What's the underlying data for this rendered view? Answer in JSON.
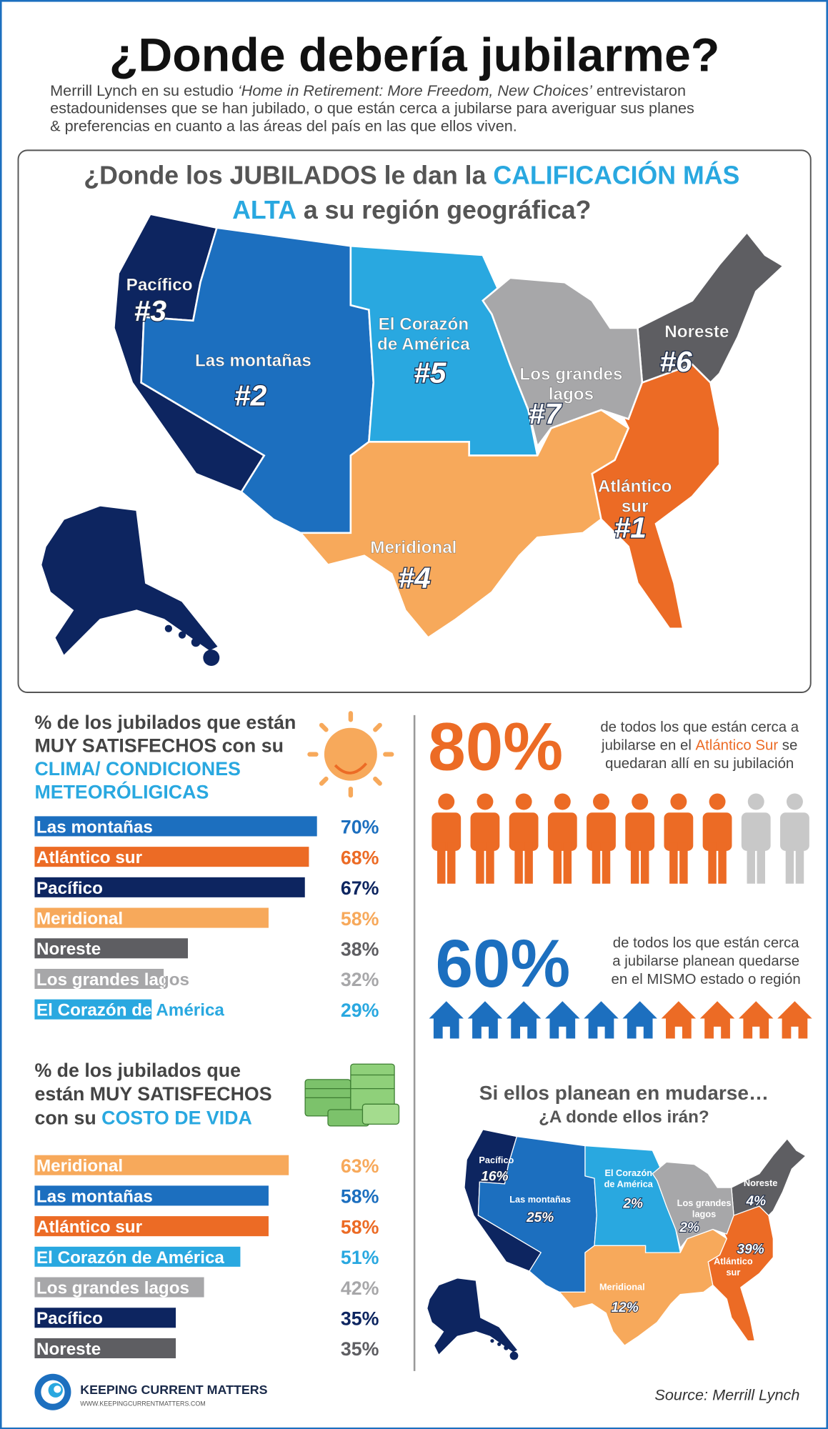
{
  "header": {
    "title": "¿Donde debería jubilarme?",
    "intro": [
      [
        {
          "text": "Merrill Lynch en su estudio "
        },
        {
          "text": "‘Home in Retirement: More Freedom, New Choices’",
          "italic": true
        },
        {
          "text": " entrevistaron"
        }
      ],
      [
        {
          "text": "estadounidenses que se han jubilado, o que están cerca a jubilarse para averiguar sus planes"
        }
      ],
      [
        {
          "text": "& preferencias en cuanto a las áreas del país en las que ellos viven."
        }
      ]
    ]
  },
  "map": {
    "title": [
      [
        {
          "text": "¿Donde los JUBILADOS le dan la "
        },
        {
          "text": "CALIFICACIÓN MÁS",
          "hl": true
        }
      ],
      [
        {
          "text": "ALTA",
          "hl": true
        },
        {
          "text": " a su región geográfica?"
        }
      ]
    ],
    "regions": [
      {
        "name": [
          "Pacífico"
        ],
        "rank": "#3",
        "color": "#0d2560"
      },
      {
        "name": [
          "Las montañas"
        ],
        "rank": "#2",
        "color": "#1c6fbf"
      },
      {
        "name": [
          "El Corazón",
          "de América"
        ],
        "rank": "#5",
        "color": "#29a8e0"
      },
      {
        "name": [
          "Meridional"
        ],
        "rank": "#4",
        "color": "#f7a95b"
      },
      {
        "name": [
          "Atlántico",
          "sur"
        ],
        "rank": "#1",
        "color": "#ec6b25"
      },
      {
        "name": [
          "Noreste"
        ],
        "rank": "#6",
        "color": "#5e5e62"
      },
      {
        "name": [
          "Los grandes",
          "lagos"
        ],
        "rank": "#7",
        "color": "#a7a7a9"
      }
    ]
  },
  "weather": {
    "title": [
      [
        {
          "text": "% de los jubilados que están"
        }
      ],
      [
        {
          "text": "MUY SATISFECHOS con su"
        }
      ],
      [
        {
          "text": "CLIMA/ CONDICIONES",
          "hl": true
        }
      ],
      [
        {
          "text": "METEORÓLIGICAS",
          "hl": true
        }
      ]
    ],
    "bars": [
      {
        "label": "Las montañas",
        "value": 70,
        "value_label": "70%",
        "color": "#1c6fbf"
      },
      {
        "label": "Atlántico sur",
        "value": 68,
        "value_label": "68%",
        "color": "#ec6b25"
      },
      {
        "label": "Pacífico",
        "value": 67,
        "value_label": "67%",
        "color": "#0d2560"
      },
      {
        "label": "Meridional",
        "value": 58,
        "value_label": "58%",
        "color": "#f7a95b"
      },
      {
        "label": "Noreste",
        "value": 38,
        "value_label": "38%",
        "color": "#5e5e62"
      },
      {
        "label": "Los grandes lagos",
        "value": 32,
        "value_label": "32%",
        "color": "#a7a7a9"
      },
      {
        "label": "El Corazón de América",
        "value": 29,
        "value_label": "29%",
        "color": "#29a8e0"
      }
    ]
  },
  "cost": {
    "title": [
      [
        {
          "text": "% de los jubilados que"
        }
      ],
      [
        {
          "text": "están MUY SATISFECHOS"
        }
      ],
      [
        {
          "text": "con su "
        },
        {
          "text": "COSTO DE VIDA",
          "hl": true
        }
      ]
    ],
    "bars": [
      {
        "label": "Meridional",
        "value": 63,
        "value_label": "63%",
        "color": "#f7a95b"
      },
      {
        "label": "Las montañas",
        "value": 58,
        "value_label": "58%",
        "color": "#1c6fbf"
      },
      {
        "label": "Atlántico sur",
        "value": 58,
        "value_label": "58%",
        "color": "#ec6b25"
      },
      {
        "label": "El Corazón de América",
        "value": 51,
        "value_label": "51%",
        "color": "#29a8e0"
      },
      {
        "label": "Los grandes lagos",
        "value": 42,
        "value_label": "42%",
        "color": "#a7a7a9"
      },
      {
        "label": "Pacífico",
        "value": 35,
        "value_label": "35%",
        "color": "#0d2560"
      },
      {
        "label": "Noreste",
        "value": 35,
        "value_label": "35%",
        "color": "#5e5e62"
      }
    ]
  },
  "stay_region": {
    "value": 80,
    "value_label": "80%",
    "color": "#ec6b25",
    "text": [
      [
        {
          "text": "de todos los que están cerca a"
        }
      ],
      [
        {
          "text": "jubilarse en el "
        },
        {
          "text": "Atlántico Sur",
          "hl": true
        },
        {
          "text": " se"
        }
      ],
      [
        {
          "text": "quedaran allí en su jubilación"
        }
      ]
    ]
  },
  "stay_state": {
    "value": 60,
    "value_label": "60%",
    "color": "#1c6fbf",
    "text": [
      [
        {
          "text": "de todos los que están cerca"
        }
      ],
      [
        {
          "text": "a jubilarse planean quedarse"
        }
      ],
      [
        {
          "text": "en el MISMO estado o región"
        }
      ]
    ]
  },
  "moves": {
    "title": [
      "Si ellos planean en mudarse…",
      "¿A donde ellos irán?"
    ],
    "regions": [
      {
        "name": [
          "Pacífico"
        ],
        "value_label": "16%"
      },
      {
        "name": [
          "Las montañas"
        ],
        "value_label": "25%"
      },
      {
        "name": [
          "El Corazón",
          "de América"
        ],
        "value_label": "2%"
      },
      {
        "name": [
          "Meridional"
        ],
        "value_label": "12%"
      },
      {
        "name": [
          "Atlántico",
          "sur"
        ],
        "value_label": "39%"
      },
      {
        "name": [
          "Noreste"
        ],
        "value_label": "4%"
      },
      {
        "name": [
          "Los grandes",
          "lagos"
        ],
        "value_label": "2%"
      }
    ]
  },
  "footer": {
    "brand": "Keeping Current Matters",
    "url": "www.keepingcurrentmatters.com",
    "source": "Source: Merrill Lynch"
  }
}
